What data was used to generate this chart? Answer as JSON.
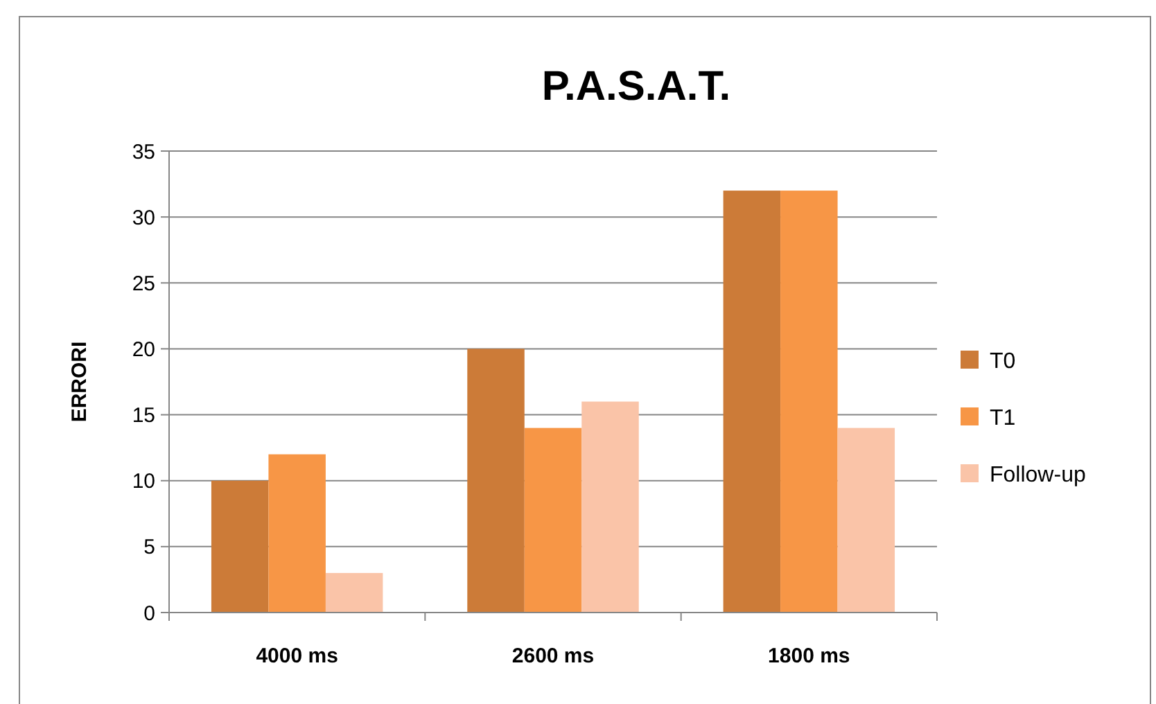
{
  "chart_data": {
    "type": "bar",
    "title": "P.A.S.A.T.",
    "ylabel": "ERRORI",
    "categories": [
      "4000 ms",
      "2600 ms",
      "1800 ms"
    ],
    "series": [
      {
        "name": "T0",
        "color": "#cc7b38",
        "values": [
          10,
          20,
          32
        ]
      },
      {
        "name": "T1",
        "color": "#f79646",
        "values": [
          12,
          14,
          32
        ]
      },
      {
        "name": "Follow-up",
        "color": "#fac4a8",
        "values": [
          3,
          16,
          14
        ]
      }
    ],
    "ylim": [
      0,
      35
    ],
    "yticks": [
      0,
      5,
      10,
      15,
      20,
      25,
      30,
      35
    ],
    "grid": "y",
    "legend": "right"
  }
}
